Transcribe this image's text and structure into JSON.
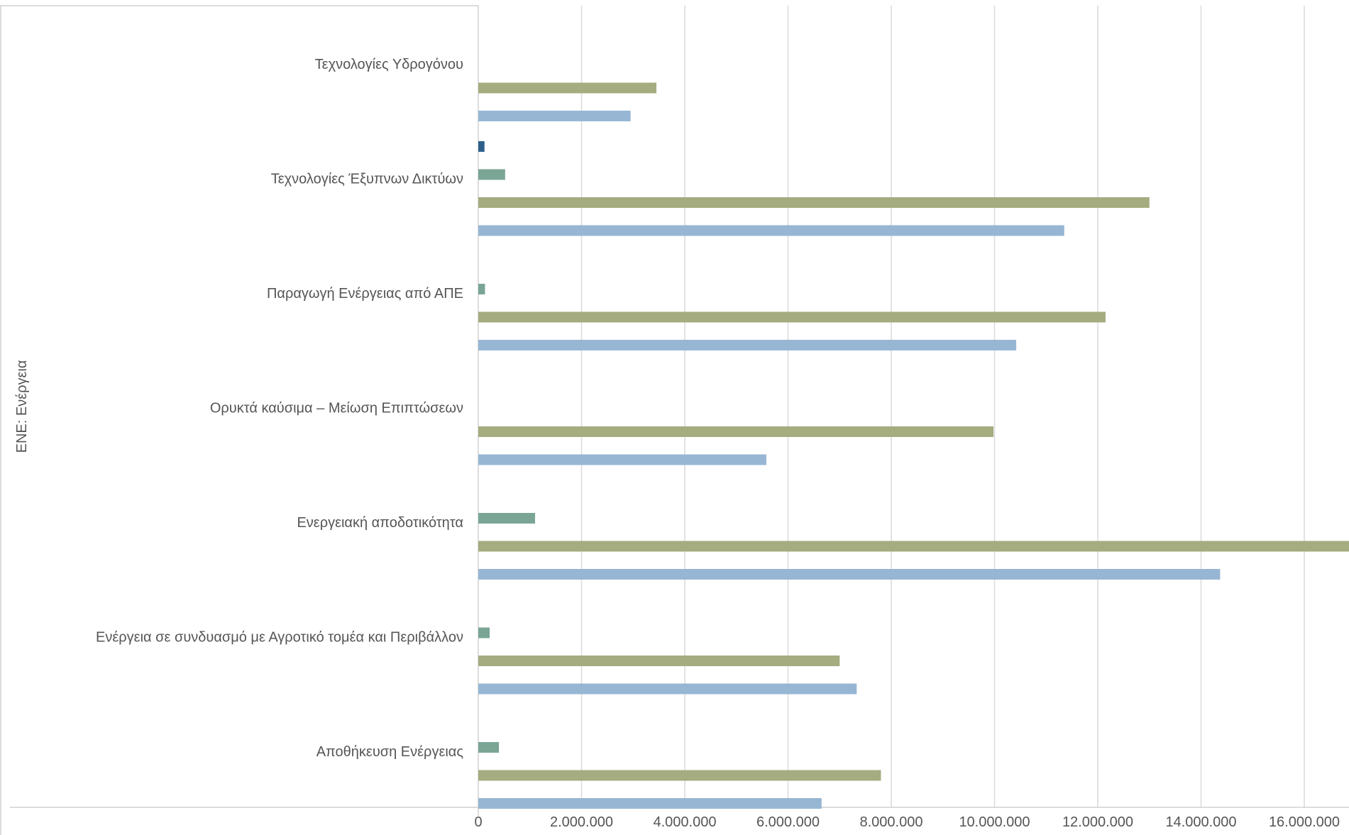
{
  "chart_data": {
    "type": "bar",
    "orientation": "horizontal",
    "group_label": "ΕΝΕ: Ενέργεια",
    "categories": [
      "Τεχνολογίες Υδρογόνου",
      "Τεχνολογίες Έξυπνων Δικτύων",
      "Παραγωγή Ενέργειας από ΑΠΕ",
      "Ορυκτά καύσιμα – Μείωση Επιπτώσεων",
      "Ενεργειακή αποδοτικότητα",
      "Ενέργεια σε συνδυασμό με Αγροτικό τομέα και Περιβάλλον",
      "Αποθήκευση Ενέργειας"
    ],
    "series": [
      {
        "color": "#2e5f8a",
        "values": [
          0,
          120000,
          0,
          0,
          0,
          0,
          0
        ]
      },
      {
        "color": "#7aa595",
        "values": [
          0,
          520000,
          130000,
          0,
          1100000,
          220000,
          400000
        ]
      },
      {
        "color": "#a4ac80",
        "values": [
          3450000,
          13000000,
          12150000,
          9980000,
          17780000,
          7000000,
          7800000
        ]
      },
      {
        "color": "#97b6d3",
        "values": [
          2950000,
          11350000,
          10420000,
          5580000,
          14370000,
          7330000,
          6650000
        ]
      }
    ],
    "xlim": [
      0,
      20000000
    ],
    "ticks": [
      0,
      2000000,
      4000000,
      6000000,
      8000000,
      10000000,
      12000000,
      14000000,
      16000000
    ],
    "tick_labels": [
      "0",
      "2.000.000",
      "4.000.000",
      "6.000.000",
      "8.000.000",
      "10.000.000",
      "12.000.000",
      "14.000.000",
      "16.000.000"
    ],
    "grid": "vertical",
    "gridline_color": "#d9d9d9",
    "axis_color": "#d0d0d0"
  }
}
